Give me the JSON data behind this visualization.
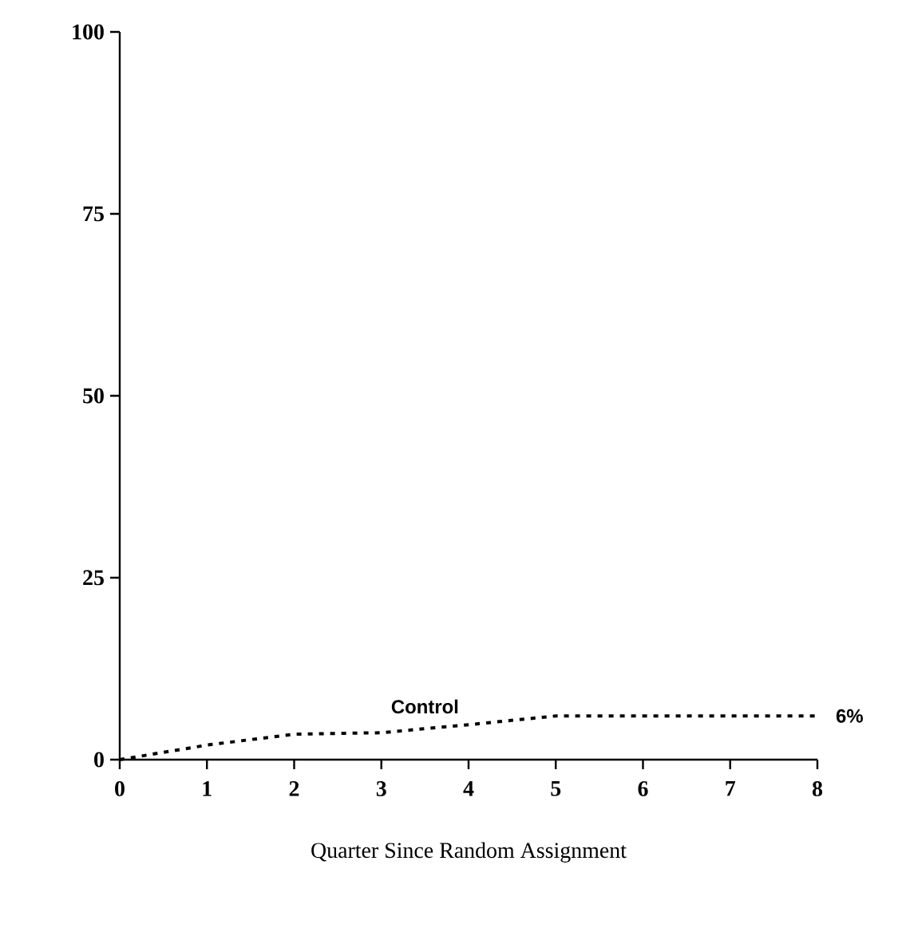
{
  "chart_data": {
    "type": "line",
    "xlabel": "Quarter Since Random Assignment",
    "x": [
      0,
      1,
      2,
      3,
      4,
      5,
      6,
      7,
      8
    ],
    "series": [
      {
        "name": "Control",
        "color": "#000000",
        "values": [
          0,
          2,
          3.5,
          3.7,
          4.8,
          6,
          6,
          6,
          6
        ],
        "value_labels": [
          null,
          null,
          null,
          null,
          null,
          null,
          null,
          null,
          "6%"
        ]
      }
    ],
    "xlim": [
      0,
      8
    ],
    "xticks": [
      0,
      1,
      2,
      3,
      4,
      5,
      6,
      7,
      8
    ],
    "ylim": [
      0,
      100
    ],
    "yticks": [
      0,
      25,
      50,
      75,
      100
    ],
    "line_style": "dotted",
    "marker": "none",
    "grid": false,
    "legend": false
  }
}
